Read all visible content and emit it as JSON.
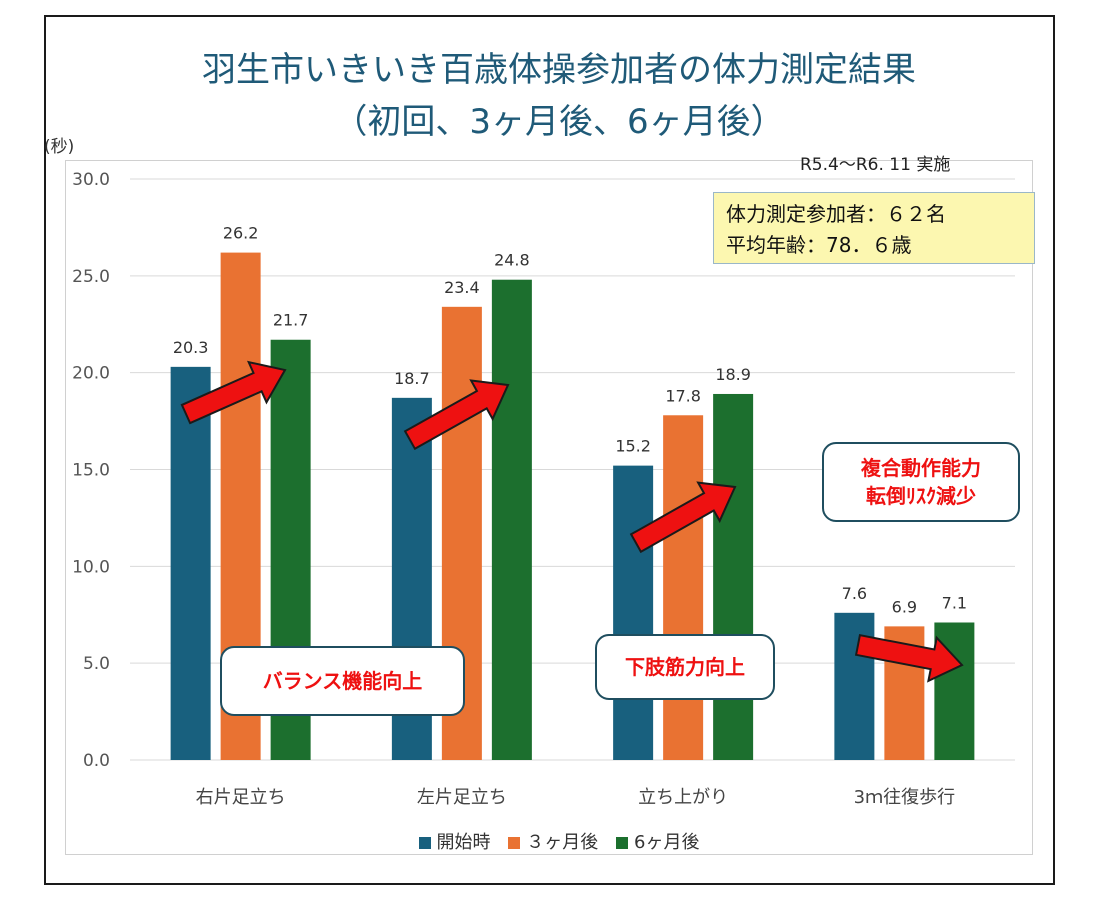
{
  "colors": {
    "title": "#1f5a78",
    "s1": "#18607e",
    "s2": "#e97232",
    "s3": "#1c6f2e",
    "arrow": "#ee1111"
  },
  "chart_data": {
    "type": "bar",
    "title_line1": "羽生市いきいき百歳体操参加者の体力測定結果",
    "title_line2": "（初回、3ヶ月後、6ヶ月後）",
    "ylabel": "(秒)",
    "period": "R5.4～R6. 11  実施",
    "info_line1": "体力測定参加者：６２名",
    "info_line2": "平均年齢：78．６歳",
    "categories": [
      "右片足立ち",
      "左片足立ち",
      "立ち上がり",
      "3ｍ往復歩行"
    ],
    "series": [
      {
        "name": "開始時",
        "values": [
          20.3,
          18.7,
          15.2,
          7.6
        ],
        "labels": [
          "20.3",
          "18.7",
          "15.2",
          "7.6"
        ]
      },
      {
        "name": "３ヶ月後",
        "values": [
          26.2,
          23.4,
          17.8,
          6.9
        ],
        "labels": [
          "26.2",
          "23.4",
          "17.8",
          "6.9"
        ]
      },
      {
        "name": "6ヶ月後",
        "values": [
          21.7,
          24.8,
          18.9,
          7.1
        ],
        "labels": [
          "21.7",
          "24.8",
          "18.9",
          "7.1"
        ]
      }
    ],
    "ylim": [
      0,
      30
    ],
    "yticks": [
      "0.0",
      "5.0",
      "10.0",
      "15.0",
      "20.0",
      "25.0",
      "30.0"
    ],
    "grid": true,
    "legend": "bottom",
    "annotations": {
      "balance": "バランス機能向上",
      "legs": "下肢筋力向上",
      "walk_line1": "複合動作能力",
      "walk_line2": "転倒ﾘｽｸ減少"
    }
  }
}
